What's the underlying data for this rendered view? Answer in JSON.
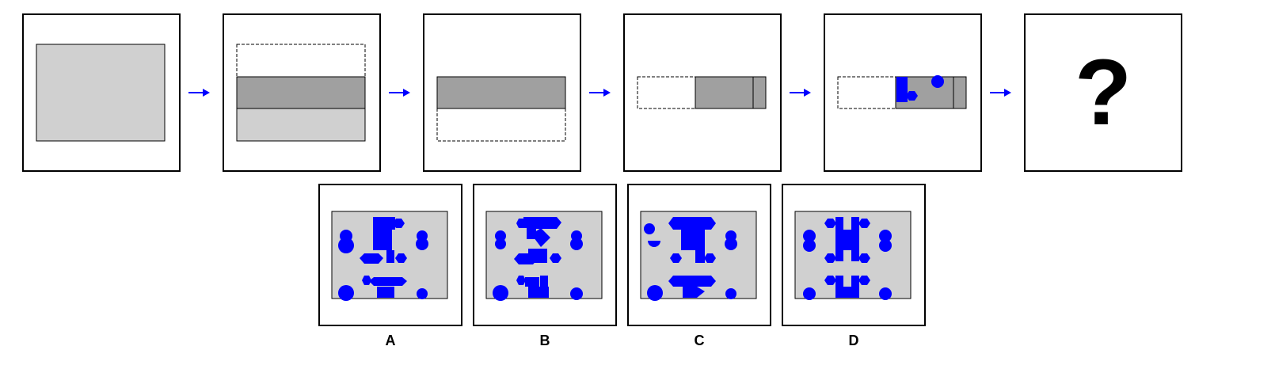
{
  "puzzle": {
    "question_mark": "?",
    "options": [
      {
        "label": "A"
      },
      {
        "label": "B"
      },
      {
        "label": "C"
      },
      {
        "label": "D"
      }
    ]
  },
  "colors": {
    "light_gray": "#d0d0d0",
    "dark_gray": "#a0a0a0",
    "shape_blue": "#0000ff",
    "arrow_blue": "#0000ff"
  }
}
